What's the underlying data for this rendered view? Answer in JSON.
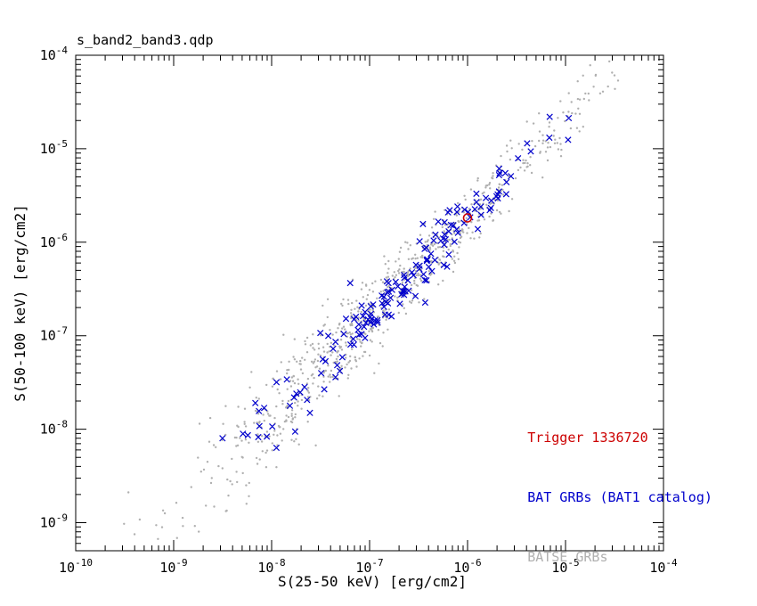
{
  "chart_data": {
    "type": "scatter",
    "title": "s_band2_band3.qdp",
    "xlabel": "S(25-50 keV) [erg/cm2]",
    "ylabel": "S(50-100 keV) [erg/cm2]",
    "x_scale": "log",
    "y_scale": "log",
    "x_log_range": [
      -10,
      -4
    ],
    "y_log_range": [
      -9.3,
      -4
    ],
    "x_tick_exponents": [
      -10,
      -9,
      -8,
      -7,
      -6,
      -5,
      -4
    ],
    "y_tick_exponents": [
      -9,
      -8,
      -7,
      -6,
      -5,
      -4
    ],
    "grid": false,
    "legend_position": "lower-right",
    "series": [
      {
        "name": "BATSE GRBs",
        "marker": "dot",
        "color": "#b0b0b0",
        "count": 880,
        "seed": 42,
        "x_mean": -6.85,
        "x_sd": 1.05,
        "x_clip": [
          -9.55,
          -4.45
        ],
        "trend_slope": 1.05,
        "trend_intercept": 0.55,
        "y_sigma_base": 0.18,
        "y_sigma_grow": 0.06,
        "y_sigma_ref": -6.5
      },
      {
        "name": "BAT GRBs (BAT1 catalog)",
        "marker": "x",
        "color": "#0000cc",
        "count": 165,
        "seed": 7,
        "x_mean": -6.55,
        "x_sd": 0.75,
        "x_clip": [
          -8.8,
          -4.9
        ],
        "trend_slope": 1.05,
        "trend_intercept": 0.55,
        "y_sigma_base": 0.14,
        "y_sigma_grow": 0.05,
        "y_sigma_ref": -6.5
      },
      {
        "name": "Trigger 1336720",
        "marker": "open-circle",
        "color": "#cc0000",
        "points_log10": [
          [
            -6.0,
            -5.74
          ]
        ]
      }
    ]
  },
  "legend": {
    "items": [
      {
        "label": "Trigger 1336720",
        "color": "#cc0000"
      },
      {
        "label": "BAT GRBs (BAT1 catalog)",
        "color": "#0000cc"
      },
      {
        "label": "BATSE GRBs",
        "color": "#b0b0b0"
      }
    ]
  }
}
